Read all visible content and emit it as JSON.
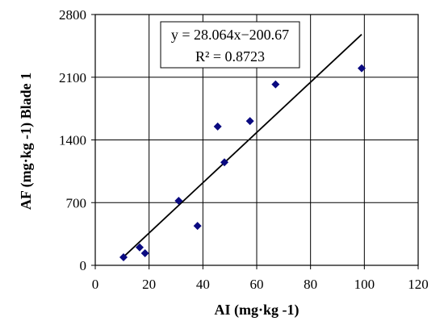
{
  "chart_data": {
    "type": "scatter",
    "xlabel": "AI (mg·kg -1)",
    "ylabel": "AF (mg·kg -1) Blade 1",
    "xlim": [
      0,
      120
    ],
    "ylim": [
      0,
      2800
    ],
    "xticks": [
      0,
      20,
      40,
      60,
      80,
      100,
      120
    ],
    "yticks": [
      0,
      700,
      1400,
      2100,
      2800
    ],
    "xtick_labels": [
      "0",
      "20",
      "40",
      "60",
      "80",
      "100",
      "120"
    ],
    "ytick_labels": [
      "0",
      "700",
      "1400",
      "2100",
      "2800"
    ],
    "grid": true,
    "marker_color": "#0a0a80",
    "points": [
      {
        "x": 10.5,
        "y": 90
      },
      {
        "x": 16.5,
        "y": 200
      },
      {
        "x": 18.5,
        "y": 135
      },
      {
        "x": 31,
        "y": 720
      },
      {
        "x": 38,
        "y": 440
      },
      {
        "x": 45.5,
        "y": 1550
      },
      {
        "x": 48,
        "y": 1150
      },
      {
        "x": 57.5,
        "y": 1610
      },
      {
        "x": 67,
        "y": 2020
      },
      {
        "x": 99,
        "y": 2200
      }
    ],
    "trendline": {
      "slope": 28.064,
      "intercept": -200.67,
      "x_range": [
        10.5,
        99
      ],
      "equation_label": "y = 28.064x−200.67",
      "r2_label": "R² = 0.8723"
    }
  }
}
